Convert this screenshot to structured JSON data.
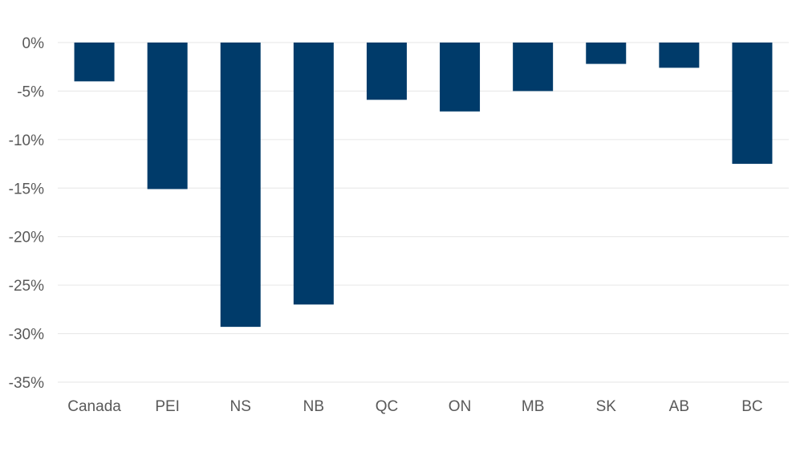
{
  "chart_data": {
    "type": "bar",
    "title": "",
    "xlabel": "",
    "ylabel": "",
    "categories": [
      "Canada",
      "PEI",
      "NS",
      "NB",
      "QC",
      "ON",
      "MB",
      "SK",
      "AB",
      "BC"
    ],
    "values": [
      -4.0,
      -15.1,
      -29.3,
      -27.0,
      -5.9,
      -7.1,
      -5.0,
      -2.2,
      -2.6,
      -12.5
    ],
    "ylim": [
      -35,
      0
    ],
    "yticks": [
      0,
      -5,
      -10,
      -15,
      -20,
      -25,
      -30,
      -35
    ],
    "ytick_labels": [
      "0%",
      "-5%",
      "-10%",
      "-15%",
      "-20%",
      "-25%",
      "-30%",
      "-35%"
    ],
    "grid": true,
    "legend": "none",
    "colors": {
      "bar": "#003b6a",
      "grid": "#e6e6e6",
      "axis_text": "#595959"
    }
  }
}
